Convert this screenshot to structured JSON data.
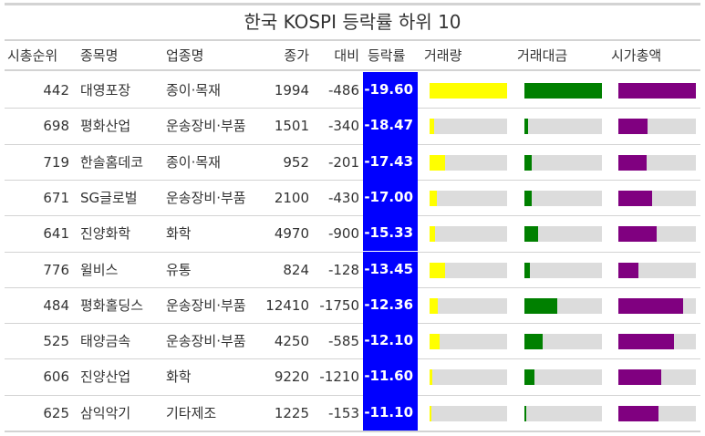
{
  "chart_data": {
    "type": "table",
    "title": "한국 KOSPI 등락률 하위 10",
    "columns": [
      "시총순위",
      "종목명",
      "업종명",
      "종가",
      "대비",
      "등락률",
      "거래량",
      "거래대금",
      "시가총액"
    ],
    "bar_colors": {
      "volume": "#ffff00",
      "amount": "#008000",
      "marketcap": "#800080",
      "track": "#dcdcdc",
      "pct_bg": "#0000ff"
    },
    "bar_max": {
      "volume": 1.0,
      "amount": 1.0,
      "marketcap": 1.0
    },
    "rows": [
      {
        "rank": "442",
        "name": "대영포장",
        "sector": "종이·목재",
        "close": "1994",
        "change": "-486",
        "pct": "-19.60",
        "volume": 1.0,
        "amount": 1.0,
        "marketcap": 1.0
      },
      {
        "rank": "698",
        "name": "평화산업",
        "sector": "운송장비·부품",
        "close": "1501",
        "change": "-340",
        "pct": "-18.47",
        "volume": 0.06,
        "amount": 0.05,
        "marketcap": 0.38
      },
      {
        "rank": "719",
        "name": "한솔홈데코",
        "sector": "종이·목재",
        "close": "952",
        "change": "-201",
        "pct": "-17.43",
        "volume": 0.2,
        "amount": 0.09,
        "marketcap": 0.36
      },
      {
        "rank": "671",
        "name": "SG글로벌",
        "sector": "운송장비·부품",
        "close": "2100",
        "change": "-430",
        "pct": "-17.00",
        "volume": 0.09,
        "amount": 0.09,
        "marketcap": 0.44
      },
      {
        "rank": "641",
        "name": "진양화학",
        "sector": "화학",
        "close": "4970",
        "change": "-900",
        "pct": "-15.33",
        "volume": 0.07,
        "amount": 0.18,
        "marketcap": 0.49
      },
      {
        "rank": "776",
        "name": "윌비스",
        "sector": "유통",
        "close": "824",
        "change": "-128",
        "pct": "-13.45",
        "volume": 0.2,
        "amount": 0.07,
        "marketcap": 0.26
      },
      {
        "rank": "484",
        "name": "평화홀딩스",
        "sector": "운송장비·부품",
        "close": "12410",
        "change": "-1750",
        "pct": "-12.36",
        "volume": 0.1,
        "amount": 0.42,
        "marketcap": 0.84
      },
      {
        "rank": "525",
        "name": "태양금속",
        "sector": "운송장비·부품",
        "close": "4250",
        "change": "-585",
        "pct": "-12.10",
        "volume": 0.13,
        "amount": 0.23,
        "marketcap": 0.72
      },
      {
        "rank": "606",
        "name": "진양산업",
        "sector": "화학",
        "close": "9220",
        "change": "-1210",
        "pct": "-11.60",
        "volume": 0.04,
        "amount": 0.13,
        "marketcap": 0.55
      },
      {
        "rank": "625",
        "name": "삼익악기",
        "sector": "기타제조",
        "close": "1225",
        "change": "-153",
        "pct": "-11.10",
        "volume": 0.02,
        "amount": 0.02,
        "marketcap": 0.52
      }
    ]
  }
}
